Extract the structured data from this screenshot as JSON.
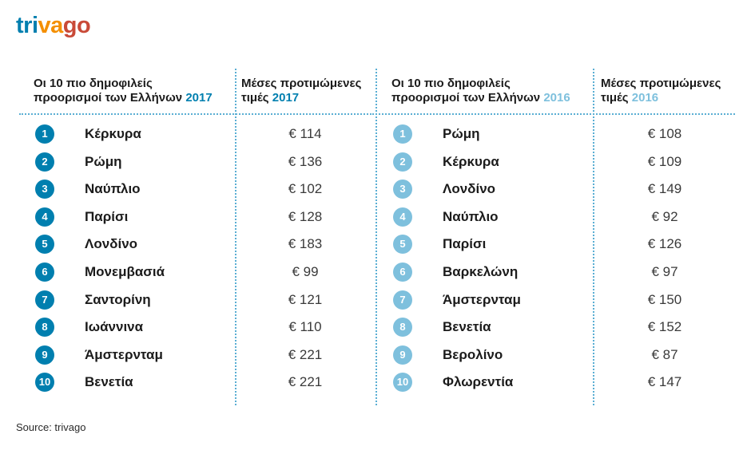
{
  "logo": {
    "p1": "tri",
    "p2": "va",
    "p3": "go"
  },
  "chart_data": [
    {
      "type": "table",
      "headers": {
        "destinations_line1": "Οι 10 πιο δημοφιλείς",
        "destinations_line2": "προορισμοί των Ελλήνων",
        "prices_line1": "Μέσες προτιμώμενες",
        "prices_line2": "τιμές",
        "year": "2017"
      },
      "rows": [
        {
          "rank": "1",
          "city": "Κέρκυρα",
          "price": "€ 114"
        },
        {
          "rank": "2",
          "city": "Ρώμη",
          "price": "€ 136"
        },
        {
          "rank": "3",
          "city": "Ναύπλιο",
          "price": "€ 102"
        },
        {
          "rank": "4",
          "city": "Παρίσι",
          "price": "€ 128"
        },
        {
          "rank": "5",
          "city": "Λονδίνο",
          "price": "€ 183"
        },
        {
          "rank": "6",
          "city": "Μονεμβασιά",
          "price": "€ 99"
        },
        {
          "rank": "7",
          "city": "Σαντορίνη",
          "price": "€ 121"
        },
        {
          "rank": "8",
          "city": "Ιωάννινα",
          "price": "€ 110"
        },
        {
          "rank": "9",
          "city": "Άμστερνταμ",
          "price": "€ 221"
        },
        {
          "rank": "10",
          "city": "Βενετία",
          "price": "€ 221"
        }
      ],
      "accent_color": "#007faf"
    },
    {
      "type": "table",
      "headers": {
        "destinations_line1": "Οι 10 πιο δημοφιλείς",
        "destinations_line2": "προορισμοί των Ελλήνων",
        "prices_line1": "Μέσες προτιμώμενες",
        "prices_line2": "τιμές",
        "year": "2016"
      },
      "rows": [
        {
          "rank": "1",
          "city": "Ρώμη",
          "price": "€ 108"
        },
        {
          "rank": "2",
          "city": "Κέρκυρα",
          "price": "€ 109"
        },
        {
          "rank": "3",
          "city": "Λονδίνο",
          "price": "€ 149"
        },
        {
          "rank": "4",
          "city": "Ναύπλιο",
          "price": "€ 92"
        },
        {
          "rank": "5",
          "city": "Παρίσι",
          "price": "€ 126"
        },
        {
          "rank": "6",
          "city": "Βαρκελώνη",
          "price": "€ 97"
        },
        {
          "rank": "7",
          "city": "Άμστερνταμ",
          "price": "€ 150"
        },
        {
          "rank": "8",
          "city": "Βενετία",
          "price": "€ 152"
        },
        {
          "rank": "9",
          "city": "Βερολίνο",
          "price": "€ 87"
        },
        {
          "rank": "10",
          "city": "Φλωρεντία",
          "price": "€ 147"
        }
      ],
      "accent_color": "#7ec0dd"
    }
  ],
  "source": "Source: trivago"
}
